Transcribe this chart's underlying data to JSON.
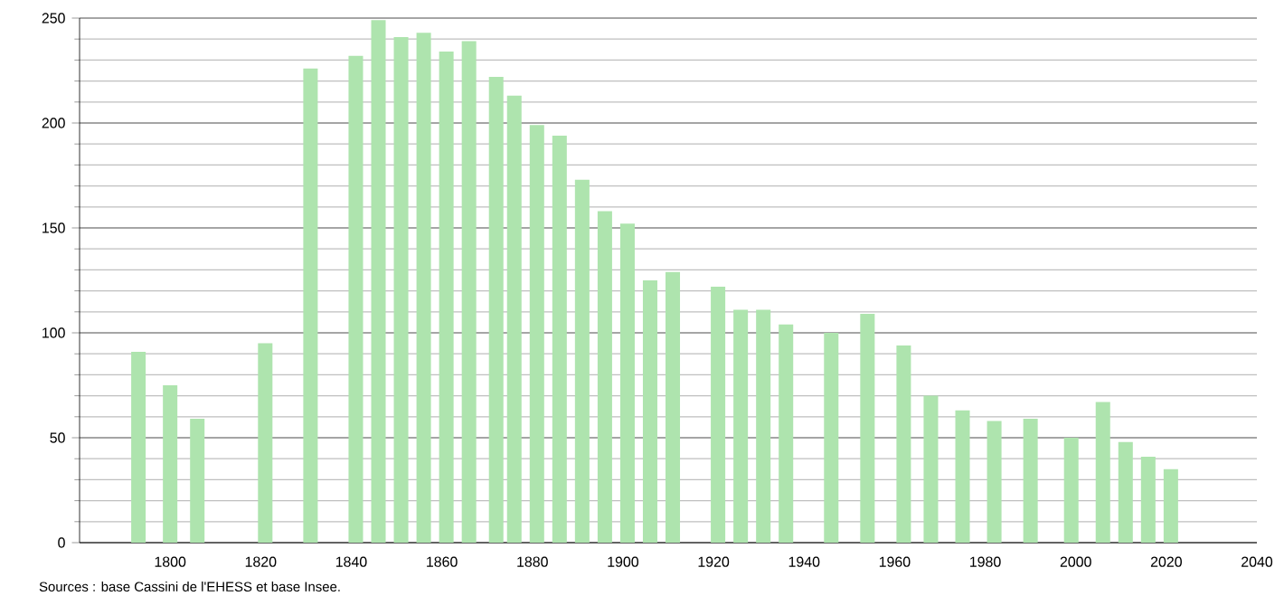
{
  "chart_data": {
    "type": "bar",
    "x": [
      1793,
      1800,
      1806,
      1821,
      1831,
      1841,
      1846,
      1851,
      1856,
      1861,
      1866,
      1872,
      1876,
      1881,
      1886,
      1891,
      1896,
      1901,
      1906,
      1911,
      1921,
      1926,
      1931,
      1936,
      1946,
      1954,
      1962,
      1968,
      1975,
      1982,
      1990,
      1999,
      2006,
      2011,
      2016,
      2021
    ],
    "values": [
      91,
      75,
      59,
      95,
      226,
      232,
      249,
      241,
      243,
      234,
      239,
      222,
      213,
      199,
      194,
      173,
      158,
      152,
      125,
      129,
      122,
      111,
      111,
      104,
      100,
      109,
      94,
      70,
      63,
      58,
      59,
      50,
      67,
      48,
      41,
      35
    ],
    "color": "#aee4ae",
    "xlim": [
      1780,
      2040
    ],
    "xticks": [
      1800,
      1820,
      1840,
      1860,
      1880,
      1900,
      1920,
      1940,
      1960,
      1980,
      2000,
      2020,
      2040
    ],
    "ylim": [
      0,
      250
    ],
    "yticks": [
      0,
      50,
      100,
      150,
      200,
      250
    ],
    "grid": "y",
    "annotations": [
      "Sources : base Cassini de l'EHESS et base Insee."
    ]
  }
}
